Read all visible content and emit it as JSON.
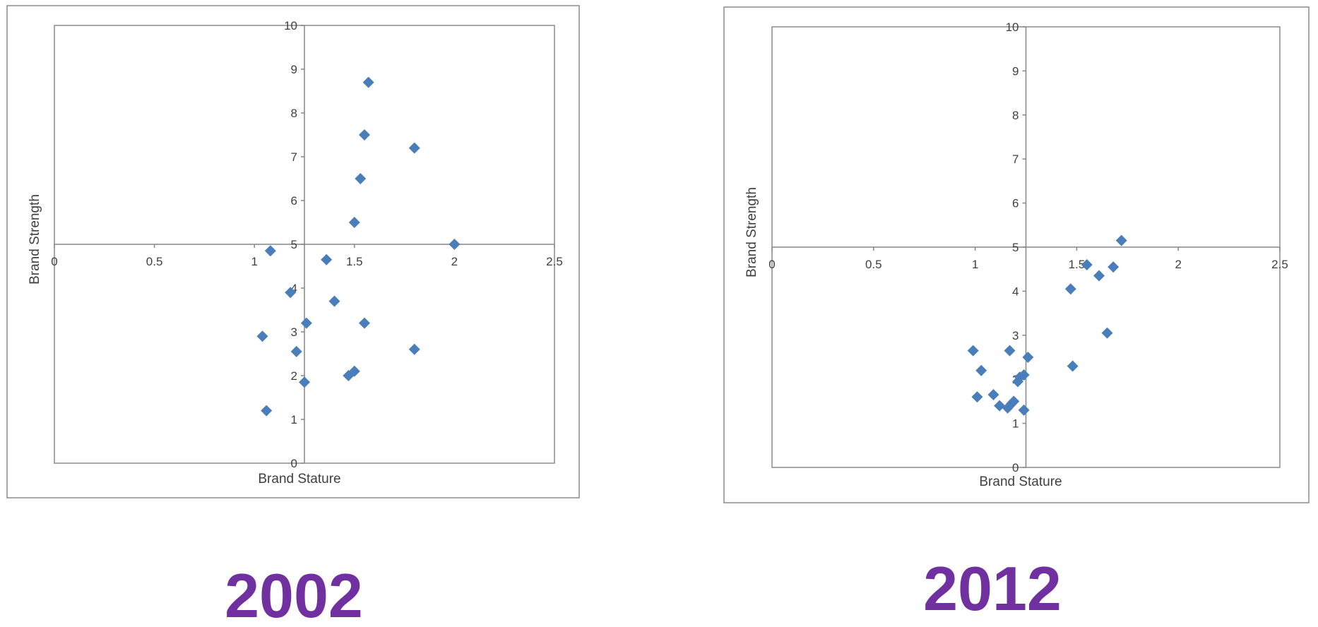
{
  "colors": {
    "marker": "#4a7ebb",
    "axis": "#868686",
    "frame": "#8c8c8c",
    "label": "#404040",
    "year": "#7030a0"
  },
  "chart_data": [
    {
      "type": "scatter",
      "marker": "diamond",
      "title": "",
      "xlabel": "Brand Stature",
      "ylabel": "Brand Strength",
      "xlim": [
        0,
        2.5
      ],
      "ylim": [
        0,
        10
      ],
      "xticks": [
        "0",
        "0.5",
        "1",
        "1.5",
        "2",
        "2.5"
      ],
      "yticks": [
        "0",
        "1",
        "2",
        "3",
        "4",
        "5",
        "6",
        "7",
        "8",
        "9",
        "10"
      ],
      "axes_cross": {
        "x": 1.25,
        "y": 5
      },
      "grid": false,
      "points": [
        {
          "x": 1.57,
          "y": 8.7
        },
        {
          "x": 1.55,
          "y": 7.5
        },
        {
          "x": 1.8,
          "y": 7.2
        },
        {
          "x": 1.53,
          "y": 6.5
        },
        {
          "x": 1.5,
          "y": 5.5
        },
        {
          "x": 2.0,
          "y": 5.0
        },
        {
          "x": 1.08,
          "y": 4.85
        },
        {
          "x": 1.36,
          "y": 4.65
        },
        {
          "x": 1.18,
          "y": 3.9
        },
        {
          "x": 1.4,
          "y": 3.7
        },
        {
          "x": 1.26,
          "y": 3.2
        },
        {
          "x": 1.55,
          "y": 3.2
        },
        {
          "x": 1.04,
          "y": 2.9
        },
        {
          "x": 1.21,
          "y": 2.55
        },
        {
          "x": 1.8,
          "y": 2.6
        },
        {
          "x": 1.47,
          "y": 2.0
        },
        {
          "x": 1.5,
          "y": 2.1
        },
        {
          "x": 1.25,
          "y": 1.85
        },
        {
          "x": 1.06,
          "y": 1.2
        }
      ]
    },
    {
      "type": "scatter",
      "marker": "diamond",
      "title": "",
      "xlabel": "Brand Stature",
      "ylabel": "Brand Strength",
      "xlim": [
        0,
        2.5
      ],
      "ylim": [
        0,
        10
      ],
      "xticks": [
        "0",
        "0.5",
        "1",
        "1.5",
        "2",
        "2.5"
      ],
      "yticks": [
        "0",
        "1",
        "2",
        "3",
        "4",
        "5",
        "6",
        "7",
        "8",
        "9",
        "10"
      ],
      "axes_cross": {
        "x": 1.25,
        "y": 5
      },
      "grid": false,
      "points": [
        {
          "x": 1.72,
          "y": 5.15
        },
        {
          "x": 1.55,
          "y": 4.6
        },
        {
          "x": 1.68,
          "y": 4.55
        },
        {
          "x": 1.61,
          "y": 4.35
        },
        {
          "x": 1.47,
          "y": 4.05
        },
        {
          "x": 1.65,
          "y": 3.05
        },
        {
          "x": 0.99,
          "y": 2.65
        },
        {
          "x": 1.17,
          "y": 2.65
        },
        {
          "x": 1.26,
          "y": 2.5
        },
        {
          "x": 1.48,
          "y": 2.3
        },
        {
          "x": 1.03,
          "y": 2.2
        },
        {
          "x": 1.22,
          "y": 2.05
        },
        {
          "x": 1.24,
          "y": 2.1
        },
        {
          "x": 1.21,
          "y": 1.95
        },
        {
          "x": 1.09,
          "y": 1.65
        },
        {
          "x": 1.01,
          "y": 1.6
        },
        {
          "x": 1.19,
          "y": 1.5
        },
        {
          "x": 1.12,
          "y": 1.4
        },
        {
          "x": 1.16,
          "y": 1.35
        },
        {
          "x": 1.18,
          "y": 1.45
        },
        {
          "x": 1.24,
          "y": 1.3
        }
      ]
    }
  ],
  "year_labels": [
    "2002",
    "2012"
  ]
}
